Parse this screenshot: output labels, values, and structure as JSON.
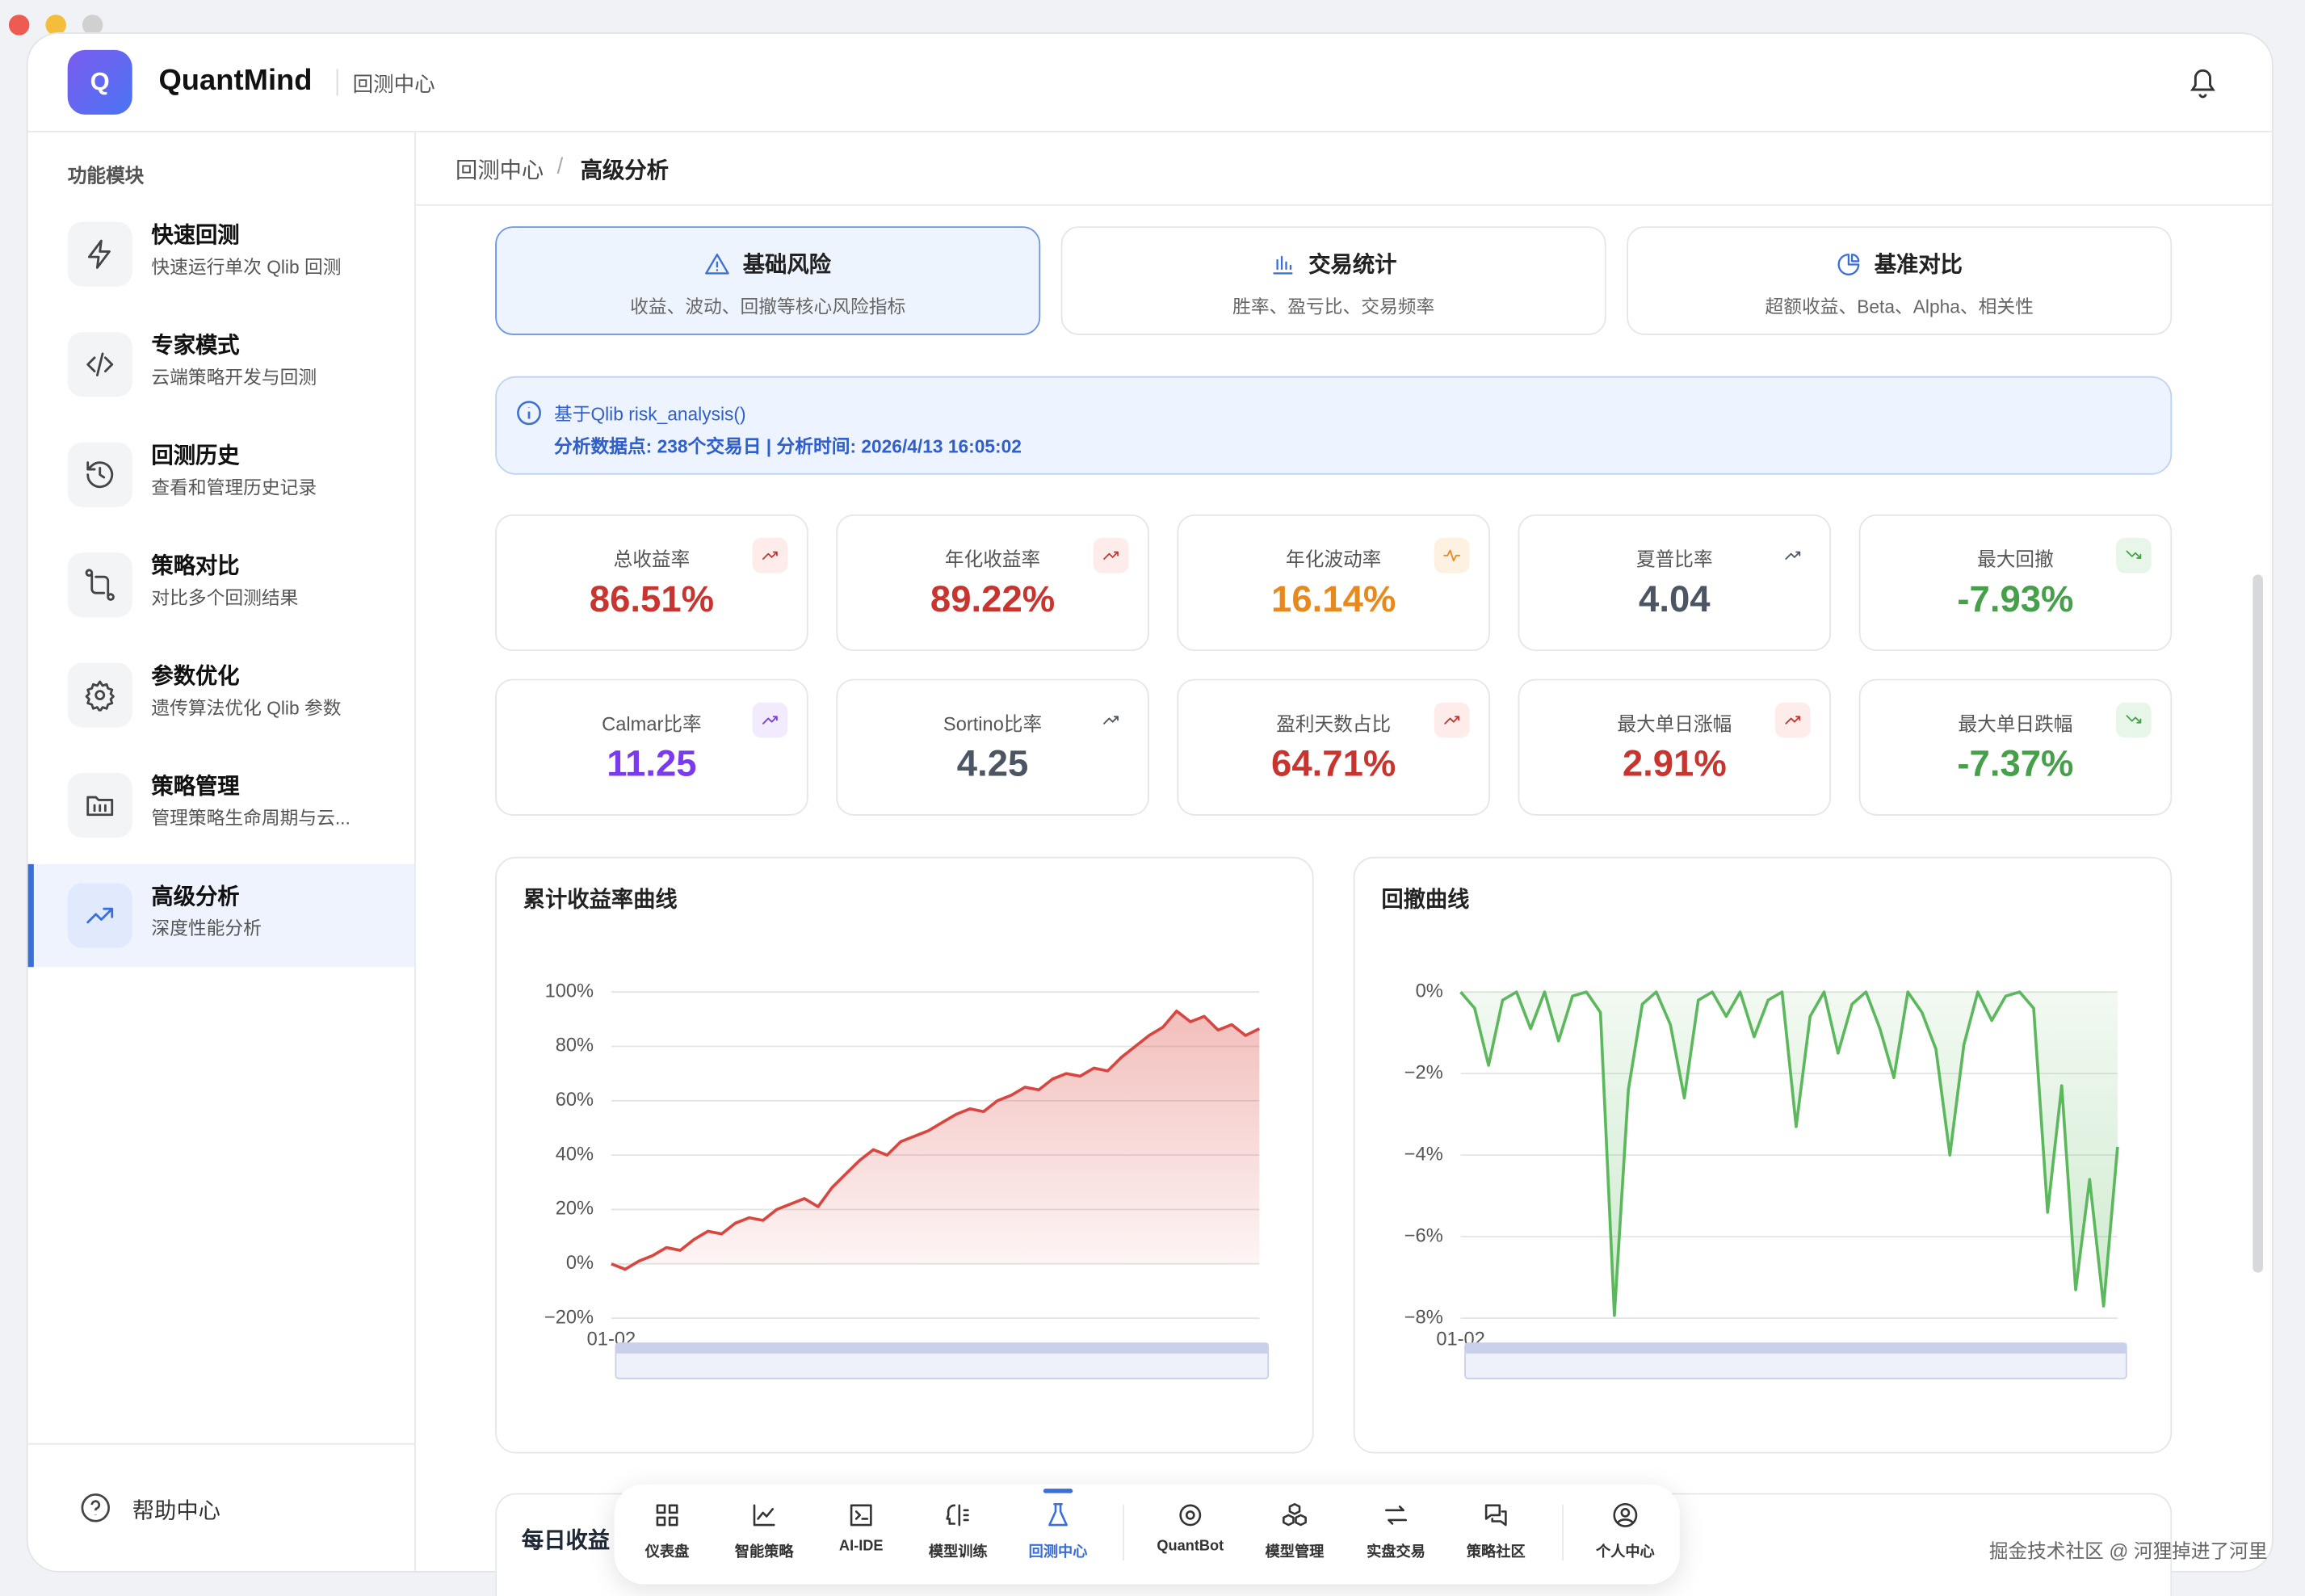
{
  "app": {
    "logo": "Q",
    "name": "QuantMind",
    "section": "回测中心"
  },
  "sidebar": {
    "heading": "功能模块",
    "items": [
      {
        "title": "快速回测",
        "desc": "快速运行单次 Qlib 回测"
      },
      {
        "title": "专家模式",
        "desc": "云端策略开发与回测"
      },
      {
        "title": "回测历史",
        "desc": "查看和管理历史记录"
      },
      {
        "title": "策略对比",
        "desc": "对比多个回测结果"
      },
      {
        "title": "参数优化",
        "desc": "遗传算法优化 Qlib 参数"
      },
      {
        "title": "策略管理",
        "desc": "管理策略生命周期与云..."
      },
      {
        "title": "高级分析",
        "desc": "深度性能分析",
        "active": true
      }
    ],
    "help": "帮助中心"
  },
  "breadcrumb": [
    "回测中心",
    "高级分析"
  ],
  "tabs": [
    {
      "title": "基础风险",
      "desc": "收益、波动、回撤等核心风险指标",
      "active": true
    },
    {
      "title": "交易统计",
      "desc": "胜率、盈亏比、交易频率"
    },
    {
      "title": "基准对比",
      "desc": "超额收益、Beta、Alpha、相关性"
    }
  ],
  "info": {
    "line1": "基于Qlib risk_analysis()",
    "line2": "分析数据点: 238个交易日 | 分析时间: 2026/4/13 16:05:02"
  },
  "metrics": [
    {
      "label": "总收益率",
      "value": "86.51%",
      "color": "#c8352f",
      "badge": "#fdecea"
    },
    {
      "label": "年化收益率",
      "value": "89.22%",
      "color": "#c8352f",
      "badge": "#fdecea"
    },
    {
      "label": "年化波动率",
      "value": "16.14%",
      "color": "#e8891d",
      "badge": "#fdf1e2"
    },
    {
      "label": "夏普比率",
      "value": "4.04",
      "color": "#4b5563",
      "badge": "#ffffff"
    },
    {
      "label": "最大回撤",
      "value": "-7.93%",
      "color": "#46a04a",
      "badge": "#e8f6ea"
    },
    {
      "label": "Calmar比率",
      "value": "11.25",
      "color": "#7c3aed",
      "badge": "#f1ebfd"
    },
    {
      "label": "Sortino比率",
      "value": "4.25",
      "color": "#4b5563",
      "badge": "#ffffff"
    },
    {
      "label": "盈利天数占比",
      "value": "64.71%",
      "color": "#c8352f",
      "badge": "#fdecea"
    },
    {
      "label": "最大单日涨幅",
      "value": "2.91%",
      "color": "#c8352f",
      "badge": "#fdecea"
    },
    {
      "label": "最大单日跌幅",
      "value": "-7.37%",
      "color": "#46a04a",
      "badge": "#e8f6ea"
    }
  ],
  "chart_data": [
    {
      "type": "line",
      "title": "累计收益率曲线",
      "color": "#d9463f",
      "area": true,
      "grid": true,
      "ylim": [
        -20,
        100
      ],
      "yticks": [
        {
          "value": -20,
          "label": "−20%"
        },
        {
          "value": 0,
          "label": "0%"
        },
        {
          "value": 20,
          "label": "20%"
        },
        {
          "value": 40,
          "label": "40%"
        },
        {
          "value": 60,
          "label": "60%"
        },
        {
          "value": 80,
          "label": "80%"
        },
        {
          "value": 100,
          "label": "100%"
        }
      ],
      "categories": [
        "01-02",
        null,
        null,
        null,
        null,
        null,
        null,
        null,
        null,
        null,
        null,
        null,
        null,
        null,
        null,
        null,
        null,
        null,
        null,
        null,
        null,
        null,
        null,
        null,
        null,
        null,
        null,
        null,
        null,
        null,
        null,
        null,
        null,
        null,
        null,
        null,
        null,
        null,
        null,
        null,
        null,
        null,
        null,
        null,
        null,
        null,
        null,
        null
      ],
      "values": [
        0,
        -2,
        1,
        3,
        6,
        5,
        9,
        12,
        11,
        15,
        17,
        16,
        20,
        22,
        24,
        21,
        28,
        33,
        38,
        42,
        40,
        45,
        47,
        49,
        52,
        55,
        57,
        56,
        60,
        62,
        65,
        64,
        68,
        70,
        69,
        72,
        71,
        76,
        80,
        84,
        87,
        93,
        89,
        91,
        86,
        88,
        84,
        86.51
      ]
    },
    {
      "type": "line",
      "title": "回撤曲线",
      "color": "#5cb85c",
      "area": true,
      "grid": true,
      "ylim": [
        -8,
        0
      ],
      "yticks": [
        {
          "value": -8,
          "label": "−8%"
        },
        {
          "value": -6,
          "label": "−6%"
        },
        {
          "value": -4,
          "label": "−4%"
        },
        {
          "value": -2,
          "label": "−2%"
        },
        {
          "value": 0,
          "label": "0%"
        }
      ],
      "categories": [
        "01-02",
        null,
        null,
        null,
        null,
        null,
        null,
        null,
        null,
        null,
        null,
        null,
        null,
        null,
        null,
        null,
        null,
        null,
        null,
        null,
        null,
        null,
        null,
        null,
        null,
        null,
        null,
        null,
        null,
        null,
        null,
        null,
        null,
        null,
        null,
        null,
        null,
        null,
        null,
        null,
        null,
        null,
        null,
        null,
        null,
        null,
        null,
        null
      ],
      "values": [
        0,
        -0.4,
        -1.8,
        -0.2,
        0,
        -0.9,
        0,
        -1.2,
        -0.1,
        0,
        -0.5,
        -7.93,
        -2.4,
        -0.3,
        0,
        -0.8,
        -2.6,
        -0.2,
        0,
        -0.6,
        0,
        -1.1,
        -0.2,
        0,
        -3.3,
        -0.6,
        0,
        -1.5,
        -0.3,
        0,
        -0.9,
        -2.1,
        0,
        -0.5,
        -1.4,
        -4,
        -1.3,
        0,
        -0.7,
        -0.1,
        0,
        -0.4,
        -5.4,
        -2.3,
        -7.3,
        -4.6,
        -7.7,
        -3.8
      ]
    }
  ],
  "daily_title": "每日收益",
  "bottom_nav": [
    {
      "label": "仪表盘"
    },
    {
      "label": "智能策略"
    },
    {
      "label": "AI-IDE"
    },
    {
      "label": "模型训练"
    },
    {
      "label": "回测中心",
      "active": true
    },
    {
      "label": "QuantBot"
    },
    {
      "label": "模型管理"
    },
    {
      "label": "实盘交易"
    },
    {
      "label": "策略社区"
    },
    {
      "label": "个人中心"
    }
  ],
  "watermark": "掘金技术社区 @ 河狸掉进了河里"
}
